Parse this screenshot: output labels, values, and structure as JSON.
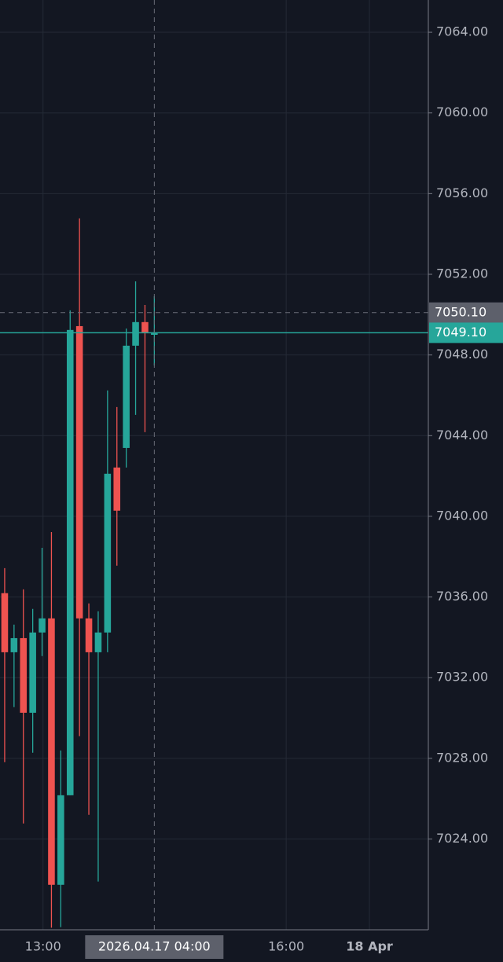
{
  "chart_data": {
    "type": "candlestick",
    "up_color": "#26a69a",
    "down_color": "#ef5350",
    "x": [
      0,
      1,
      2,
      3,
      4,
      5,
      6,
      7,
      8,
      9,
      10,
      11,
      12,
      13,
      14,
      15,
      16
    ],
    "open": [
      7036.19,
      7033.26,
      7033.96,
      7030.26,
      7034.24,
      7034.94,
      7021.73,
      7026.17,
      7049.43,
      7034.94,
      7033.26,
      7034.24,
      7042.42,
      7043.39,
      7048.46,
      7049.63,
      7049.0
    ],
    "high": [
      7037.43,
      7034.63,
      7036.38,
      7035.41,
      7038.44,
      7039.22,
      7028.39,
      7050.21,
      7054.77,
      7035.68,
      7035.29,
      7046.24,
      7045.42,
      7049.31,
      7051.65,
      7050.48,
      7050.91
    ],
    "low": [
      7027.81,
      7030.54,
      7024.77,
      7028.28,
      7033.07,
      7019.6,
      7019.63,
      7026.17,
      7029.1,
      7025.2,
      7021.89,
      7033.26,
      7037.55,
      7042.42,
      7045.03,
      7044.17,
      7047.48
    ],
    "close": [
      7033.26,
      7033.96,
      7030.26,
      7034.24,
      7034.94,
      7021.73,
      7026.17,
      7049.24,
      7034.94,
      7033.26,
      7034.24,
      7042.11,
      7040.28,
      7048.46,
      7049.63,
      7049.12,
      7049.1
    ],
    "xlim": [
      -0.5,
      45.3
    ],
    "xticks": [
      {
        "value": 4.1,
        "label": "13:00"
      },
      {
        "value": 30.1,
        "label": "16:00"
      },
      {
        "value": 39,
        "label": "18 Apr"
      }
    ],
    "ylim": [
      7019.5,
      7065.6
    ],
    "yticks": [
      {
        "value": 7024,
        "label": "7024.00"
      },
      {
        "value": 7028,
        "label": "7028.00"
      },
      {
        "value": 7032,
        "label": "7032.00"
      },
      {
        "value": 7036,
        "label": "7036.00"
      },
      {
        "value": 7040,
        "label": "7040.00"
      },
      {
        "value": 7044,
        "label": "7044.00"
      },
      {
        "value": 7048,
        "label": "7048.00"
      },
      {
        "value": 7052,
        "label": "7052.00"
      },
      {
        "value": 7056,
        "label": "7056.00"
      },
      {
        "value": 7060,
        "label": "7060.00"
      },
      {
        "value": 7064,
        "label": "7064.00"
      }
    ],
    "grid": true,
    "crosshair": {
      "x": {
        "value": 16,
        "label": "2026.04.17 04:00"
      },
      "y": {
        "value": 7050.1,
        "label": "7050.10"
      }
    },
    "last_price": {
      "value": 7049.1,
      "label": "7049.10"
    }
  }
}
